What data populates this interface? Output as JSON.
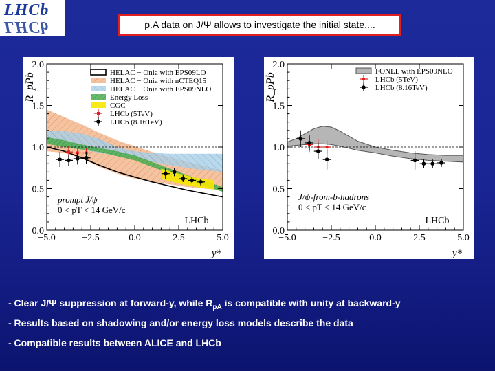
{
  "logo": {
    "text": "LHCb"
  },
  "slide_title": "p.A data on J/Ψ allows to investigate the initial state....",
  "bullets": [
    {
      "pre": "- Clear J/Ψ suppression at forward-y, while R",
      "sub": "pA",
      "post": " is compatible with unity at backward-y"
    },
    {
      "pre": "- Results based on shadowing and/or energy loss models describe the data",
      "sub": "",
      "post": ""
    },
    {
      "pre": "- Compatible results between ALICE and LHCb",
      "sub": "",
      "post": ""
    }
  ],
  "colors": {
    "lhcb5": "#e02020",
    "lhcb816": "#000000",
    "energy_loss": "#4caf50",
    "cgc": "#f5e800",
    "ncteq": "#f3b98f",
    "eps09nlo": "#a9d0e8",
    "fonll": "#9e9e9e"
  },
  "chart_data": [
    {
      "type": "scatter",
      "ylabel": "R_pPb",
      "xlabel": "y*",
      "xlim": [
        -5.0,
        5.0
      ],
      "ylim": [
        0.0,
        2.0
      ],
      "xticks": [
        "−5.0",
        "−2.5",
        "0.0",
        "2.5",
        "5.0"
      ],
      "yticks": [
        "0.0",
        "0.5",
        "1.0",
        "1.5",
        "2.0"
      ],
      "legend": [
        "HELAC − Onia with EPS09LO",
        "HELAC − Onia with nCTEQ15",
        "HELAC − Onia with EPS09NLO",
        "Energy Loss",
        "CGC",
        "LHCb (5TeV)",
        "LHCb (8.16TeV)"
      ],
      "annotation_lines": [
        "prompt J/ψ",
        "0 < pT < 14 GeV/c"
      ],
      "experiment_label": "LHCb",
      "series": [
        {
          "name": "LHCb (5TeV)",
          "x": [
            -3.75,
            -3.25,
            -2.75
          ],
          "y": [
            0.94,
            0.93,
            0.93
          ],
          "err": [
            0.07,
            0.06,
            0.06
          ]
        },
        {
          "name": "LHCb (8.16TeV)",
          "x": [
            -4.25,
            -3.75,
            -3.25,
            -2.75,
            1.75,
            2.25,
            2.75,
            3.25,
            3.75
          ],
          "y": [
            0.85,
            0.84,
            0.86,
            0.87,
            0.68,
            0.7,
            0.62,
            0.6,
            0.58
          ],
          "err": [
            0.09,
            0.07,
            0.07,
            0.07,
            0.06,
            0.05,
            0.04,
            0.04,
            0.04
          ]
        }
      ],
      "bands": [
        {
          "name": "HELAC − Onia with nCTEQ15",
          "x": [
            -5.0,
            -4.0,
            -3.0,
            -2.0,
            -1.0,
            0.0,
            1.0,
            2.0,
            3.0,
            4.0,
            5.0
          ],
          "lo": [
            0.95,
            0.93,
            0.86,
            0.76,
            0.68,
            0.62,
            0.58,
            0.55,
            0.52,
            0.5,
            0.48
          ],
          "hi": [
            1.45,
            1.36,
            1.27,
            1.17,
            1.08,
            1.01,
            0.94,
            0.88,
            0.82,
            0.77,
            0.72
          ]
        },
        {
          "name": "HELAC − Onia with EPS09NLO",
          "x": [
            -5.0,
            -4.0,
            -3.0,
            -2.0,
            -1.0,
            0.0,
            1.0,
            2.0,
            3.0,
            4.0,
            5.0
          ],
          "lo": [
            1.06,
            1.02,
            0.97,
            0.93,
            0.9,
            0.88,
            0.82,
            0.78,
            0.75,
            0.72,
            0.7
          ],
          "hi": [
            1.2,
            1.19,
            1.16,
            1.1,
            1.0,
            0.95,
            0.93,
            0.92,
            0.92,
            0.92,
            0.92
          ]
        },
        {
          "name": "Energy Loss",
          "x": [
            -5.0,
            -4.0,
            -3.0,
            -2.0,
            -1.0,
            0.0,
            1.0,
            2.0,
            3.0,
            4.0,
            5.0
          ],
          "lo": [
            1.04,
            1.0,
            0.97,
            0.94,
            0.89,
            0.84,
            0.76,
            0.68,
            0.6,
            0.53,
            0.46
          ],
          "hi": [
            1.12,
            1.08,
            1.03,
            0.99,
            0.95,
            0.9,
            0.82,
            0.74,
            0.66,
            0.59,
            0.52
          ]
        },
        {
          "name": "CGC",
          "x": [
            1.5,
            2.5,
            3.5,
            4.5
          ],
          "lo": [
            0.62,
            0.56,
            0.52,
            0.49
          ],
          "hi": [
            0.74,
            0.68,
            0.63,
            0.6
          ]
        }
      ],
      "curves": [
        {
          "name": "HELAC − Onia with EPS09LO",
          "x": [
            -5.0,
            -4.0,
            -3.0,
            -2.0,
            -1.0,
            0.0,
            1.0,
            2.0,
            3.0,
            4.0,
            5.0
          ],
          "y": [
            1.0,
            0.95,
            0.87,
            0.78,
            0.7,
            0.64,
            0.58,
            0.53,
            0.48,
            0.44,
            0.4
          ]
        }
      ],
      "reference_line": 1.0
    },
    {
      "type": "scatter",
      "ylabel": "R_pPb",
      "xlabel": "y*",
      "xlim": [
        -5.0,
        5.0
      ],
      "ylim": [
        0.0,
        2.0
      ],
      "xticks": [
        "−5.0",
        "−2.5",
        "0.0",
        "2.5",
        "5.0"
      ],
      "yticks": [
        "0.0",
        "0.5",
        "1.0",
        "1.5",
        "2.0"
      ],
      "legend": [
        "FONLL with EPS09NLO",
        "LHCb (5TeV)",
        "LHCb (8.16TeV)"
      ],
      "annotation_lines": [
        "J/ψ-from-b-hadrons",
        "0 < pT < 14 GeV/c"
      ],
      "experiment_label": "LHCb",
      "series": [
        {
          "name": "LHCb (5TeV)",
          "x": [
            -3.75,
            -3.25,
            -2.75
          ],
          "y": [
            1.03,
            1.0,
            1.0
          ],
          "err": [
            0.09,
            0.09,
            0.08
          ]
        },
        {
          "name": "LHCb (8.16TeV)",
          "x": [
            -4.25,
            -3.75,
            -3.25,
            -2.75,
            2.25,
            2.75,
            3.25,
            3.75
          ],
          "y": [
            1.1,
            1.05,
            0.95,
            0.85,
            0.84,
            0.8,
            0.8,
            0.81
          ],
          "err": [
            0.1,
            0.09,
            0.1,
            0.12,
            0.11,
            0.05,
            0.05,
            0.05
          ]
        }
      ],
      "bands": [
        {
          "name": "FONLL with EPS09NLO",
          "x": [
            -5.0,
            -4.5,
            -4.0,
            -3.5,
            -3.0,
            -2.5,
            -2.0,
            -1.0,
            0.0,
            1.0,
            2.0,
            3.0,
            4.0,
            5.0
          ],
          "lo": [
            1.01,
            1.02,
            1.03,
            1.04,
            1.04,
            1.03,
            1.01,
            0.96,
            0.93,
            0.89,
            0.86,
            0.84,
            0.83,
            0.82
          ],
          "hi": [
            1.06,
            1.1,
            1.16,
            1.22,
            1.25,
            1.24,
            1.19,
            1.07,
            1.0,
            0.96,
            0.93,
            0.91,
            0.9,
            0.9
          ]
        }
      ],
      "curves": [],
      "reference_line": 1.0
    }
  ]
}
